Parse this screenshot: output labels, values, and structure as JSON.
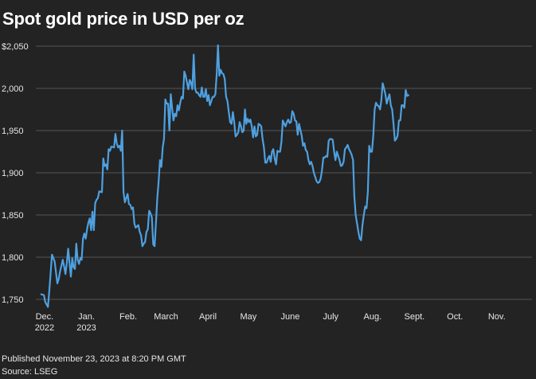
{
  "title": "Spot gold price in USD per oz",
  "footer": {
    "published": "Published November 23, 2023 at 8:20 PM GMT",
    "source": "Source: LSEG"
  },
  "colors": {
    "background": "#232323",
    "line": "#4ea0e0",
    "grid": "#555555",
    "text": "#e6e6e6"
  },
  "chart_data": {
    "type": "line",
    "title": "Spot gold price in USD per oz",
    "xlabel": "",
    "ylabel": "",
    "ylim": [
      1733,
      2055
    ],
    "grid": true,
    "legend": "none",
    "y_ticks": [
      {
        "value": 2050,
        "label": "$2,050"
      },
      {
        "value": 2000,
        "label": "2,000"
      },
      {
        "value": 1950,
        "label": "1,950"
      },
      {
        "value": 1900,
        "label": "1,900"
      },
      {
        "value": 1850,
        "label": "1,850"
      },
      {
        "value": 1800,
        "label": "1,800"
      },
      {
        "value": 1750,
        "label": "1,750"
      }
    ],
    "x_ticks": [
      {
        "x": 0.5,
        "label": [
          "Dec.",
          "2022"
        ]
      },
      {
        "x": 31.5,
        "label": [
          "Jan.",
          "2023"
        ]
      },
      {
        "x": 62.5,
        "label": [
          "Feb."
        ]
      },
      {
        "x": 90.5,
        "label": [
          "March"
        ]
      },
      {
        "x": 121.5,
        "label": [
          "April"
        ]
      },
      {
        "x": 151.5,
        "label": [
          "May"
        ]
      },
      {
        "x": 182.5,
        "label": [
          "June"
        ]
      },
      {
        "x": 212.5,
        "label": [
          "July"
        ]
      },
      {
        "x": 243.5,
        "label": [
          "Aug."
        ]
      },
      {
        "x": 274.5,
        "label": [
          "Sept."
        ]
      },
      {
        "x": 304.5,
        "label": [
          "Oct."
        ]
      },
      {
        "x": 335.5,
        "label": [
          "Nov."
        ]
      }
    ],
    "xlim": [
      -3,
      361
    ],
    "series": [
      {
        "points": [
          [
            -2,
            1756
          ],
          [
            0,
            1755
          ],
          [
            1,
            1747
          ],
          [
            3,
            1741
          ],
          [
            4,
            1760
          ],
          [
            6,
            1803
          ],
          [
            8,
            1795
          ],
          [
            9,
            1782
          ],
          [
            10,
            1769
          ],
          [
            11,
            1774
          ],
          [
            12,
            1783
          ],
          [
            13,
            1790
          ],
          [
            14,
            1797
          ],
          [
            15,
            1789
          ],
          [
            16,
            1780
          ],
          [
            17,
            1793
          ],
          [
            18,
            1810
          ],
          [
            19,
            1793
          ],
          [
            20,
            1777
          ],
          [
            21,
            1799
          ],
          [
            22,
            1788
          ],
          [
            23,
            1786
          ],
          [
            24,
            1816
          ],
          [
            25,
            1797
          ],
          [
            26,
            1792
          ],
          [
            27,
            1799
          ],
          [
            28,
            1797
          ],
          [
            29,
            1822
          ],
          [
            30,
            1828
          ],
          [
            31,
            1822
          ],
          [
            32,
            1833
          ],
          [
            33,
            1841
          ],
          [
            34,
            1846
          ],
          [
            35,
            1832
          ],
          [
            36,
            1854
          ],
          [
            37,
            1832
          ],
          [
            38,
            1864
          ],
          [
            39,
            1868
          ],
          [
            40,
            1870
          ],
          [
            41,
            1878
          ],
          [
            43,
            1877
          ],
          [
            44,
            1917
          ],
          [
            45,
            1908
          ],
          [
            46,
            1910
          ],
          [
            47,
            1904
          ],
          [
            48,
            1928
          ],
          [
            49,
            1926
          ],
          [
            50,
            1931
          ],
          [
            52,
            1930
          ],
          [
            53,
            1946
          ],
          [
            54,
            1935
          ],
          [
            55,
            1930
          ],
          [
            56,
            1932
          ],
          [
            57,
            1926
          ],
          [
            58,
            1950
          ],
          [
            59,
            1877
          ],
          [
            60,
            1865
          ],
          [
            61,
            1870
          ],
          [
            62,
            1875
          ],
          [
            63,
            1863
          ],
          [
            64,
            1862
          ],
          [
            65,
            1857
          ],
          [
            66,
            1859
          ],
          [
            67,
            1840
          ],
          [
            68,
            1835
          ],
          [
            70,
            1838
          ],
          [
            71,
            1830
          ],
          [
            72,
            1826
          ],
          [
            73,
            1813
          ],
          [
            74,
            1816
          ],
          [
            75,
            1818
          ],
          [
            76,
            1830
          ],
          [
            77,
            1833
          ],
          [
            78,
            1855
          ],
          [
            79,
            1852
          ],
          [
            80,
            1847
          ],
          [
            81,
            1815
          ],
          [
            82,
            1813
          ],
          [
            83,
            1840
          ],
          [
            84,
            1870
          ],
          [
            85,
            1890
          ],
          [
            86,
            1915
          ],
          [
            87,
            1907
          ],
          [
            88,
            1930
          ],
          [
            89,
            1940
          ],
          [
            90,
            1987
          ],
          [
            91,
            1982
          ],
          [
            92,
            1982
          ],
          [
            93,
            1950
          ],
          [
            94,
            1993
          ],
          [
            95,
            1977
          ],
          [
            96,
            1962
          ],
          [
            97,
            1970
          ],
          [
            98,
            1967
          ],
          [
            99,
            1980
          ],
          [
            100,
            1974
          ],
          [
            101,
            1983
          ],
          [
            102,
            1990
          ],
          [
            103,
            1988
          ],
          [
            104,
            2020
          ],
          [
            105,
            2015
          ],
          [
            106,
            2007
          ],
          [
            107,
            1999
          ],
          [
            108,
            2010
          ],
          [
            109,
            2007
          ],
          [
            110,
            1999
          ],
          [
            111,
            2040
          ],
          [
            112,
            2000
          ],
          [
            113,
            1995
          ],
          [
            114,
            1995
          ],
          [
            115,
            1992
          ],
          [
            116,
            1990
          ],
          [
            117,
            2001
          ],
          [
            118,
            1990
          ],
          [
            119,
            1990
          ],
          [
            120,
            1999
          ],
          [
            121,
            1985
          ],
          [
            122,
            1992
          ],
          [
            123,
            1980
          ],
          [
            125,
            1990
          ],
          [
            126,
            1990
          ],
          [
            127,
            1993
          ],
          [
            128,
            2017
          ],
          [
            129,
            2051
          ],
          [
            130,
            2015
          ],
          [
            131,
            2022
          ],
          [
            132,
            2018
          ],
          [
            133,
            2017
          ],
          [
            134,
            2011
          ],
          [
            135,
            1990
          ],
          [
            136,
            1985
          ],
          [
            137,
            1972
          ],
          [
            138,
            1960
          ],
          [
            139,
            1958
          ],
          [
            140,
            1972
          ],
          [
            141,
            1960
          ],
          [
            142,
            1943
          ],
          [
            143,
            1945
          ],
          [
            144,
            1948
          ],
          [
            145,
            1960
          ],
          [
            146,
            1955
          ],
          [
            147,
            1948
          ],
          [
            148,
            1950
          ],
          [
            149,
            1975
          ],
          [
            150,
            1958
          ],
          [
            151,
            1964
          ],
          [
            152,
            1960
          ],
          [
            153,
            1963
          ],
          [
            154,
            1955
          ],
          [
            155,
            1942
          ],
          [
            156,
            1955
          ],
          [
            157,
            1943
          ],
          [
            158,
            1945
          ],
          [
            159,
            1958
          ],
          [
            160,
            1957
          ],
          [
            161,
            1955
          ],
          [
            162,
            1940
          ],
          [
            163,
            1930
          ],
          [
            164,
            1912
          ],
          [
            165,
            1912
          ],
          [
            166,
            1917
          ],
          [
            167,
            1920
          ],
          [
            168,
            1913
          ],
          [
            169,
            1925
          ],
          [
            170,
            1928
          ],
          [
            171,
            1917
          ],
          [
            172,
            1910
          ],
          [
            173,
            1926
          ],
          [
            174,
            1925
          ],
          [
            175,
            1925
          ],
          [
            176,
            1937
          ],
          [
            177,
            1962
          ],
          [
            178,
            1958
          ],
          [
            179,
            1955
          ],
          [
            180,
            1960
          ],
          [
            181,
            1963
          ],
          [
            182,
            1959
          ],
          [
            183,
            1960
          ],
          [
            184,
            1973
          ],
          [
            185,
            1970
          ],
          [
            186,
            1962
          ],
          [
            187,
            1961
          ],
          [
            188,
            1945
          ],
          [
            189,
            1958
          ],
          [
            190,
            1951
          ],
          [
            191,
            1944
          ],
          [
            192,
            1932
          ],
          [
            193,
            1935
          ],
          [
            194,
            1927
          ],
          [
            195,
            1925
          ],
          [
            196,
            1915
          ],
          [
            197,
            1910
          ],
          [
            198,
            1913
          ],
          [
            199,
            1908
          ],
          [
            200,
            1900
          ],
          [
            201,
            1895
          ],
          [
            202,
            1890
          ],
          [
            203,
            1888
          ],
          [
            204,
            1889
          ],
          [
            205,
            1893
          ],
          [
            206,
            1903
          ],
          [
            207,
            1918
          ],
          [
            208,
            1918
          ],
          [
            209,
            1920
          ],
          [
            210,
            1919
          ],
          [
            211,
            1938
          ],
          [
            212,
            1940
          ],
          [
            213,
            1940
          ],
          [
            214,
            1939
          ],
          [
            215,
            1925
          ],
          [
            216,
            1915
          ],
          [
            217,
            1925
          ],
          [
            218,
            1920
          ],
          [
            219,
            1915
          ],
          [
            220,
            1908
          ],
          [
            221,
            1909
          ],
          [
            222,
            1913
          ],
          [
            223,
            1928
          ],
          [
            224,
            1930
          ],
          [
            225,
            1933
          ],
          [
            226,
            1928
          ],
          [
            227,
            1925
          ],
          [
            228,
            1921
          ],
          [
            229,
            1915
          ],
          [
            230,
            1872
          ],
          [
            231,
            1850
          ],
          [
            232,
            1840
          ],
          [
            233,
            1830
          ],
          [
            234,
            1822
          ],
          [
            235,
            1820
          ],
          [
            236,
            1838
          ],
          [
            237,
            1850
          ],
          [
            238,
            1860
          ],
          [
            239,
            1858
          ],
          [
            240,
            1878
          ],
          [
            241,
            1932
          ],
          [
            242,
            1925
          ],
          [
            243,
            1925
          ],
          [
            244,
            1944
          ],
          [
            245,
            1975
          ],
          [
            246,
            1983
          ],
          [
            247,
            1980
          ],
          [
            248,
            1979
          ],
          [
            249,
            1975
          ],
          [
            250,
            1986
          ],
          [
            251,
            2006
          ],
          [
            252,
            2000
          ],
          [
            253,
            1993
          ],
          [
            254,
            1982
          ],
          [
            255,
            1988
          ],
          [
            256,
            1993
          ],
          [
            257,
            1980
          ],
          [
            258,
            1975
          ],
          [
            259,
            1958
          ],
          [
            260,
            1938
          ],
          [
            261,
            1940
          ],
          [
            262,
            1944
          ],
          [
            263,
            1962
          ],
          [
            264,
            1962
          ],
          [
            265,
            1980
          ],
          [
            266,
            1980
          ],
          [
            267,
            1977
          ],
          [
            268,
            1998
          ],
          [
            269,
            1991
          ],
          [
            270,
            1992
          ]
        ]
      }
    ]
  }
}
